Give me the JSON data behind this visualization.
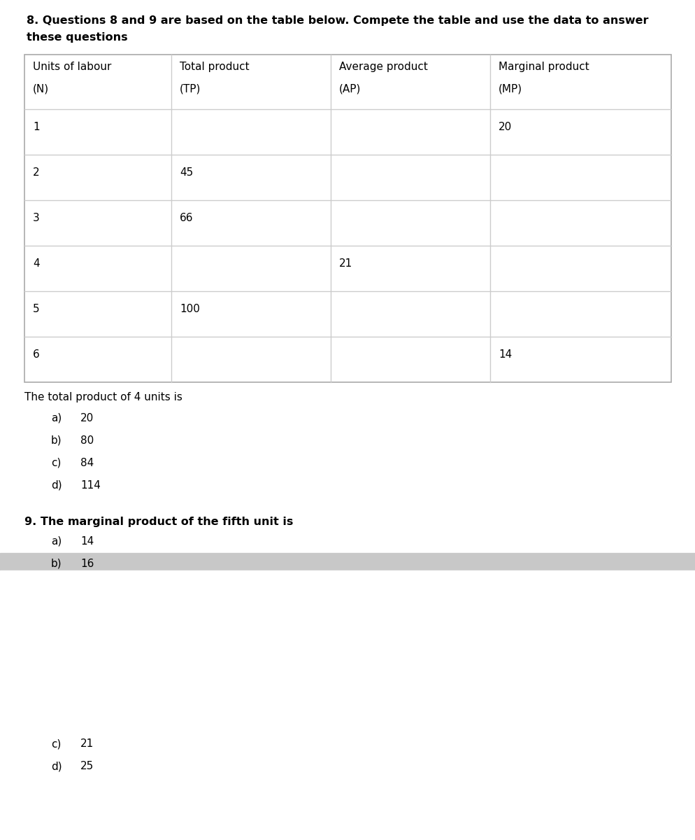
{
  "title_line1": "8. Questions 8 and 9 are based on the table below. Compete the table and use the data to answer",
  "title_line2": "these questions",
  "bg_color": "#d8d8d8",
  "page1_bg": "#ffffff",
  "page2_bg": "#ffffff",
  "gap_color": "#c8c8c8",
  "table_headers": [
    [
      "Units of labour",
      "Total product",
      "Average product",
      "Marginal product"
    ],
    [
      "(N)",
      "(TP)",
      "(AP)",
      "(MP)"
    ]
  ],
  "table_rows": [
    [
      "1",
      "",
      "",
      "20"
    ],
    [
      "2",
      "45",
      "",
      ""
    ],
    [
      "3",
      "66",
      "",
      ""
    ],
    [
      "4",
      "",
      "21",
      ""
    ],
    [
      "5",
      "100",
      "",
      ""
    ],
    [
      "6",
      "",
      "",
      "14"
    ]
  ],
  "below_table_text": "The total product of 4 units is",
  "q8_options": [
    [
      "a)",
      "20"
    ],
    [
      "b)",
      "80"
    ],
    [
      "c)",
      "84"
    ],
    [
      "d)",
      "114"
    ]
  ],
  "q9_title": "9. The marginal product of the fifth unit is",
  "q9_options_top": [
    [
      "a)",
      "14"
    ],
    [
      "b)",
      "16"
    ]
  ],
  "q9_options_bottom": [
    [
      "c)",
      "21"
    ],
    [
      "d)",
      "25"
    ]
  ],
  "font_size_body": 11,
  "font_size_title": 11.5,
  "table_border_color": "#aaaaaa",
  "table_line_color": "#cccccc"
}
